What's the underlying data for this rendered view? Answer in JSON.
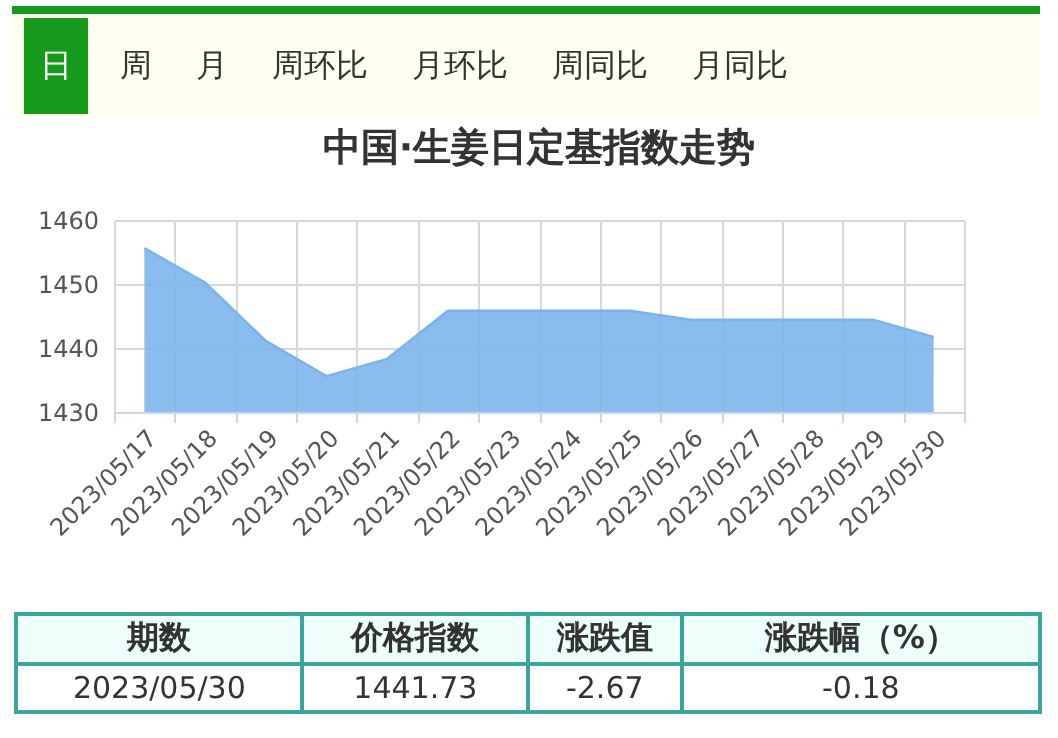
{
  "chart_data": {
    "type": "area",
    "title": "中国·生姜日定基指数走势",
    "categories": [
      "2023/05/17",
      "2023/05/18",
      "2023/05/19",
      "2023/05/20",
      "2023/05/21",
      "2023/05/22",
      "2023/05/23",
      "2023/05/24",
      "2023/05/25",
      "2023/05/26",
      "2023/05/27",
      "2023/05/28",
      "2023/05/29",
      "2023/05/30"
    ],
    "series": [
      {
        "color": "#7cb5ec",
        "values": [
          1455.6,
          1450.2,
          1441.1,
          1435.6,
          1438.3,
          1445.8,
          1445.8,
          1445.8,
          1445.8,
          1444.4,
          1444.4,
          1444.4,
          1444.4,
          1441.7
        ]
      }
    ],
    "ylim": [
      1430,
      1460
    ],
    "yticks": [
      1430,
      1440,
      1450,
      1460
    ],
    "grid": true,
    "annotations": [
      "日",
      "周",
      "月",
      "周环比",
      "月环比",
      "周同比",
      "月同比",
      "期数",
      "价格指数",
      "涨跌值",
      "涨跌幅（%）",
      "2023/05/30",
      "1441.73",
      "-2.67",
      "-0.18"
    ]
  }
}
